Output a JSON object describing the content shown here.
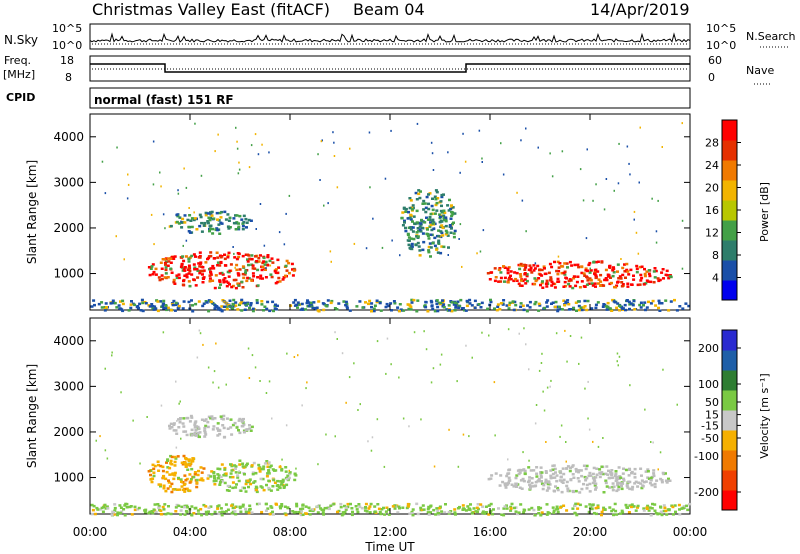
{
  "header": {
    "title": "Christmas Valley East (fitACF)",
    "beam": "Beam 04",
    "date": "14/Apr/2019"
  },
  "strips": {
    "nsky": {
      "label": "N.Sky",
      "y_ticks": [
        "10^5",
        "10^0"
      ],
      "right_ticks": [
        "10^5",
        "10^0"
      ],
      "right_label": "N.Search"
    },
    "freq": {
      "label_top": "Freq.",
      "label_unit": "[MHz]",
      "y_ticks": [
        "18",
        "8"
      ],
      "right_ticks": [
        "60",
        "0"
      ],
      "right_label": "Nave"
    },
    "cpid": {
      "label": "CPID",
      "mode_text": "normal (fast) 151 RF"
    }
  },
  "colors": {
    "power_scale": [
      "#0000ee",
      "#1a4fa8",
      "#2e7d6b",
      "#43a047",
      "#b8c700",
      "#f2b400",
      "#f07a00",
      "#e53000",
      "#ff0000"
    ],
    "velocity_scale": [
      "#ff0000",
      "#f04000",
      "#f07a00",
      "#f5b000",
      "#c8c8c8",
      "#7ac943",
      "#2e7d32",
      "#1e5fa8",
      "#2a2ad0"
    ],
    "ground_scatter": "#bdbdbd"
  },
  "chart_data": [
    {
      "type": "heatmap",
      "name": "power",
      "title": "",
      "xlabel": "Time UT",
      "ylabel": "Slant Range [km]",
      "x_ticks": [
        "00:00",
        "04:00",
        "08:00",
        "12:00",
        "16:00",
        "20:00",
        "00:00"
      ],
      "y_ticks": [
        1000,
        2000,
        3000,
        4000
      ],
      "ylim": [
        200,
        4500
      ],
      "xlim_hours": [
        0,
        24
      ],
      "colorbar": {
        "label": "Power [dB]",
        "ticks": [
          4,
          8,
          12,
          16,
          20,
          24,
          28
        ],
        "range": [
          0,
          32
        ]
      },
      "regions": [
        {
          "t0": 2.3,
          "t1": 8.2,
          "r0": 700,
          "r1": 1500,
          "level": "high"
        },
        {
          "t0": 3.0,
          "t1": 6.5,
          "r0": 1900,
          "r1": 2400,
          "level": "medium"
        },
        {
          "t0": 12.4,
          "t1": 14.6,
          "r0": 1400,
          "r1": 2900,
          "level": "medium"
        },
        {
          "t0": 15.8,
          "t1": 23.2,
          "r0": 700,
          "r1": 1300,
          "level": "high"
        },
        {
          "t0": 0.0,
          "t1": 24.0,
          "r0": 200,
          "r1": 450,
          "level": "low"
        }
      ]
    },
    {
      "type": "heatmap",
      "name": "velocity",
      "title": "",
      "xlabel": "Time UT",
      "ylabel": "Slant Range [km]",
      "x_ticks": [
        "00:00",
        "04:00",
        "08:00",
        "12:00",
        "16:00",
        "20:00",
        "00:00"
      ],
      "y_ticks": [
        1000,
        2000,
        3000,
        4000
      ],
      "ylim": [
        200,
        4500
      ],
      "xlim_hours": [
        0,
        24
      ],
      "colorbar": {
        "label": "Velocity [m s⁻¹]",
        "ticks": [
          -200,
          -100,
          -50,
          -15,
          15,
          50,
          100,
          200
        ],
        "range": [
          -250,
          250
        ]
      },
      "regions": [
        {
          "t0": 2.3,
          "t1": 4.6,
          "r0": 700,
          "r1": 1500,
          "kind": "negative"
        },
        {
          "t0": 4.6,
          "t1": 8.2,
          "r0": 700,
          "r1": 1400,
          "kind": "positive"
        },
        {
          "t0": 3.0,
          "t1": 6.5,
          "r0": 1900,
          "r1": 2400,
          "kind": "ground"
        },
        {
          "t0": 15.8,
          "t1": 23.2,
          "r0": 700,
          "r1": 1300,
          "kind": "ground"
        },
        {
          "t0": 0.0,
          "t1": 24.0,
          "r0": 200,
          "r1": 450,
          "kind": "positive"
        }
      ]
    }
  ],
  "axes": {
    "time_label": "Time UT"
  }
}
